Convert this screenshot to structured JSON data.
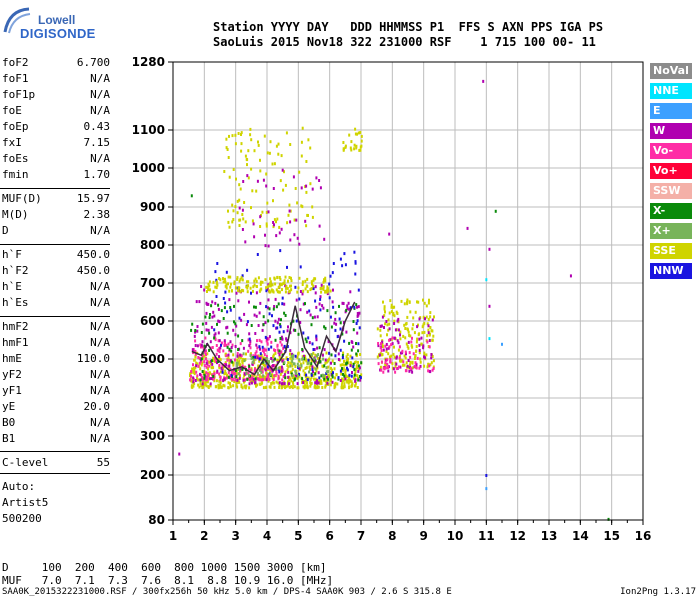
{
  "logo": {
    "line1": "Lowell",
    "line2": "DIGISONDE"
  },
  "header": {
    "line1": "Station YYYY DAY   DDD HHMMSS P1  FFS S AXN PPS IGA PS",
    "line2": "SaoLuis 2015 Nov18 322 231000 RSF    1 715 100 00- 11"
  },
  "params_group1": [
    {
      "name": "foF2",
      "value": "6.700"
    },
    {
      "name": "foF1",
      "value": "N/A"
    },
    {
      "name": "foF1p",
      "value": "N/A"
    },
    {
      "name": "foE",
      "value": "N/A"
    },
    {
      "name": "foEp",
      "value": "0.43"
    },
    {
      "name": "fxI",
      "value": "7.15"
    },
    {
      "name": "foEs",
      "value": "N/A"
    },
    {
      "name": "fmin",
      "value": "1.70"
    }
  ],
  "params_group2": [
    {
      "name": "MUF(D)",
      "value": "15.97"
    },
    {
      "name": "M(D)",
      "value": "2.38"
    },
    {
      "name": "D",
      "value": "N/A"
    }
  ],
  "params_group3": [
    {
      "name": "h`F",
      "value": "450.0"
    },
    {
      "name": "h`F2",
      "value": "450.0"
    },
    {
      "name": "h`E",
      "value": "N/A"
    },
    {
      "name": "h`Es",
      "value": "N/A"
    }
  ],
  "params_group4": [
    {
      "name": "hmF2",
      "value": "N/A"
    },
    {
      "name": "hmF1",
      "value": "N/A"
    },
    {
      "name": "hmE",
      "value": "110.0"
    },
    {
      "name": "yF2",
      "value": "N/A"
    },
    {
      "name": "yF1",
      "value": "N/A"
    },
    {
      "name": "yE",
      "value": "20.0"
    },
    {
      "name": "B0",
      "value": "N/A"
    },
    {
      "name": "B1",
      "value": "N/A"
    }
  ],
  "params_group5": [
    {
      "name": "C-level",
      "value": "55"
    }
  ],
  "auto": {
    "label": "Auto:",
    "artist": "Artist5",
    "code": "500200"
  },
  "legend": [
    {
      "label": "NoVal",
      "color": "#8c8c8c"
    },
    {
      "label": "NNE",
      "color": "#00e5ff"
    },
    {
      "label": "E",
      "color": "#3ca0ff"
    },
    {
      "label": "W",
      "color": "#b000b0"
    },
    {
      "label": "Vo-",
      "color": "#ff2ca6"
    },
    {
      "label": "Vo+",
      "color": "#ff0038"
    },
    {
      "label": "SSW",
      "color": "#f4b0a8"
    },
    {
      "label": "X-",
      "color": "#0a8a0a"
    },
    {
      "label": "X+",
      "color": "#78b45a"
    },
    {
      "label": "SSE",
      "color": "#cfd400"
    },
    {
      "label": "NNW",
      "color": "#1a14e0"
    }
  ],
  "footer": {
    "d_line": "D     100  200  400  600  800 1000 1500 3000 [km]",
    "muf_line": "MUF   7.0  7.1  7.3  7.6  8.1  8.8 10.9 16.0 [MHz]",
    "file_line": "SAA0K_2015322231000.RSF / 300fx256h 50 kHz 5.0 km / DPS-4 SAA0K 903 / 2.6 S 315.8 E",
    "version": "Ion2Png 1.3.17"
  },
  "chart_data": {
    "type": "scatter",
    "xlabel": "",
    "ylabel": "",
    "xlim": [
      1,
      16
    ],
    "ylim": [
      80,
      1280
    ],
    "x_ticks": [
      1,
      2,
      3,
      4,
      5,
      6,
      7,
      8,
      9,
      10,
      11,
      12,
      13,
      14,
      15,
      16
    ],
    "y_ticks": [
      80,
      200,
      300,
      400,
      500,
      600,
      700,
      800,
      900,
      1000,
      1100,
      1280
    ],
    "grid": true,
    "y_scale": "nonlinear",
    "trace": {
      "name": "",
      "x": [
        1.6,
        1.9,
        2.1,
        2.4,
        2.8,
        3.2,
        3.6,
        3.9,
        4.2,
        4.6,
        4.9,
        5.2,
        5.6,
        5.9,
        6.2,
        6.5,
        6.8
      ],
      "y": [
        520,
        510,
        540,
        500,
        470,
        480,
        460,
        500,
        470,
        520,
        640,
        530,
        480,
        560,
        520,
        600,
        650
      ]
    },
    "clusters": [
      {
        "series": "SSE",
        "x": [
          1.5,
          7.0
        ],
        "y": [
          430,
          520
        ],
        "count": 600
      },
      {
        "series": "Vo-",
        "x": [
          1.5,
          4.5
        ],
        "y": [
          450,
          560
        ],
        "count": 220
      },
      {
        "series": "W",
        "x": [
          1.6,
          7.0
        ],
        "y": [
          440,
          700
        ],
        "count": 260
      },
      {
        "series": "X-",
        "x": [
          1.5,
          7.0
        ],
        "y": [
          450,
          650
        ],
        "count": 140
      },
      {
        "series": "NNW",
        "x": [
          2.2,
          7.0
        ],
        "y": [
          450,
          800
        ],
        "count": 120
      },
      {
        "series": "SSE",
        "x": [
          2.0,
          6.0
        ],
        "y": [
          680,
          720
        ],
        "count": 160
      },
      {
        "series": "SSE",
        "x": [
          2.6,
          5.5
        ],
        "y": [
          850,
          1110
        ],
        "count": 110
      },
      {
        "series": "W",
        "x": [
          3.0,
          5.8
        ],
        "y": [
          800,
          1000
        ],
        "count": 40
      },
      {
        "series": "SSE",
        "x": [
          7.5,
          9.3
        ],
        "y": [
          480,
          660
        ],
        "count": 180
      },
      {
        "series": "W",
        "x": [
          7.5,
          9.3
        ],
        "y": [
          470,
          620
        ],
        "count": 70
      },
      {
        "series": "Vo-",
        "x": [
          7.5,
          9.3
        ],
        "y": [
          470,
          560
        ],
        "count": 50
      },
      {
        "series": "SSE",
        "x": [
          6.4,
          7.0
        ],
        "y": [
          1050,
          1110
        ],
        "count": 25
      },
      {
        "series": "X+",
        "x": [
          3.0,
          6.0
        ],
        "y": [
          460,
          520
        ],
        "count": 60
      }
    ],
    "isolated_points": [
      {
        "series": "W",
        "x": 10.9,
        "y": 1230
      },
      {
        "series": "W",
        "x": 10.4,
        "y": 845
      },
      {
        "series": "W",
        "x": 11.1,
        "y": 790
      },
      {
        "series": "X-",
        "x": 11.3,
        "y": 890
      },
      {
        "series": "NNE",
        "x": 11.0,
        "y": 710
      },
      {
        "series": "W",
        "x": 11.1,
        "y": 640
      },
      {
        "series": "NNE",
        "x": 11.1,
        "y": 555
      },
      {
        "series": "E",
        "x": 11.5,
        "y": 540
      },
      {
        "series": "W",
        "x": 13.7,
        "y": 720
      },
      {
        "series": "NNW",
        "x": 11.0,
        "y": 200
      },
      {
        "series": "E",
        "x": 11.0,
        "y": 165
      },
      {
        "series": "X-",
        "x": 14.9,
        "y": 83
      },
      {
        "series": "W",
        "x": 1.2,
        "y": 255
      },
      {
        "series": "X-",
        "x": 1.6,
        "y": 930
      },
      {
        "series": "W",
        "x": 7.9,
        "y": 830
      }
    ]
  }
}
